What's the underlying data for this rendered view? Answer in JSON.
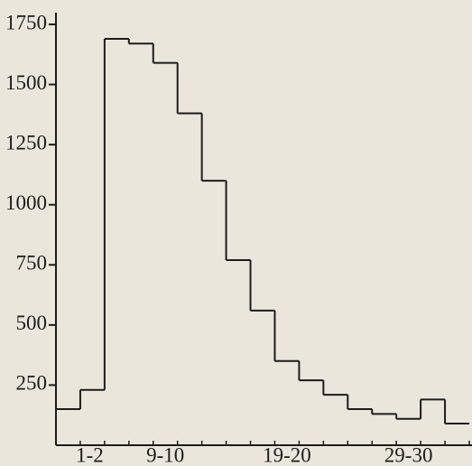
{
  "chart_data": {
    "type": "step",
    "categories": [
      "1-2",
      null,
      null,
      null,
      "9-10",
      null,
      null,
      null,
      null,
      "19-20",
      null,
      null,
      null,
      null,
      "29-30",
      null,
      null
    ],
    "values": [
      150,
      230,
      1690,
      1670,
      1590,
      1380,
      1100,
      770,
      560,
      350,
      270,
      210,
      150,
      130,
      110,
      190,
      90
    ],
    "color": "#1c1c1c",
    "ylim": [
      0,
      1800
    ],
    "yticks": [
      250,
      500,
      750,
      1000,
      1250,
      1500,
      1750
    ]
  }
}
